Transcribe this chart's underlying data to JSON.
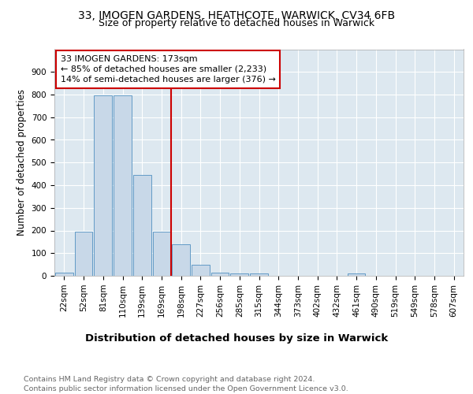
{
  "title1": "33, IMOGEN GARDENS, HEATHCOTE, WARWICK, CV34 6FB",
  "title2": "Size of property relative to detached houses in Warwick",
  "xlabel": "Distribution of detached houses by size in Warwick",
  "ylabel": "Number of detached properties",
  "footnote": "Contains HM Land Registry data © Crown copyright and database right 2024.\nContains public sector information licensed under the Open Government Licence v3.0.",
  "categories": [
    "22sqm",
    "52sqm",
    "81sqm",
    "110sqm",
    "139sqm",
    "169sqm",
    "198sqm",
    "227sqm",
    "256sqm",
    "285sqm",
    "315sqm",
    "344sqm",
    "373sqm",
    "402sqm",
    "432sqm",
    "461sqm",
    "490sqm",
    "519sqm",
    "549sqm",
    "578sqm",
    "607sqm"
  ],
  "values": [
    15,
    195,
    795,
    795,
    445,
    195,
    140,
    50,
    15,
    10,
    10,
    0,
    0,
    0,
    0,
    10,
    0,
    0,
    0,
    0,
    0
  ],
  "bar_color": "#c8d8e8",
  "bar_edge_color": "#5090c0",
  "vline_x_index": 5,
  "vline_color": "#cc0000",
  "annotation_text": "33 IMOGEN GARDENS: 173sqm\n← 85% of detached houses are smaller (2,233)\n14% of semi-detached houses are larger (376) →",
  "annotation_box_color": "#ffffff",
  "annotation_box_edge": "#cc0000",
  "ylim": [
    0,
    1000
  ],
  "yticks": [
    0,
    100,
    200,
    300,
    400,
    500,
    600,
    700,
    800,
    900,
    1000
  ],
  "background_color": "#dde8f0",
  "grid_color": "#ffffff",
  "title1_fontsize": 10,
  "title2_fontsize": 9,
  "xlabel_fontsize": 9.5,
  "ylabel_fontsize": 8.5,
  "tick_fontsize": 7.5,
  "annotation_fontsize": 8,
  "footnote_fontsize": 6.8
}
